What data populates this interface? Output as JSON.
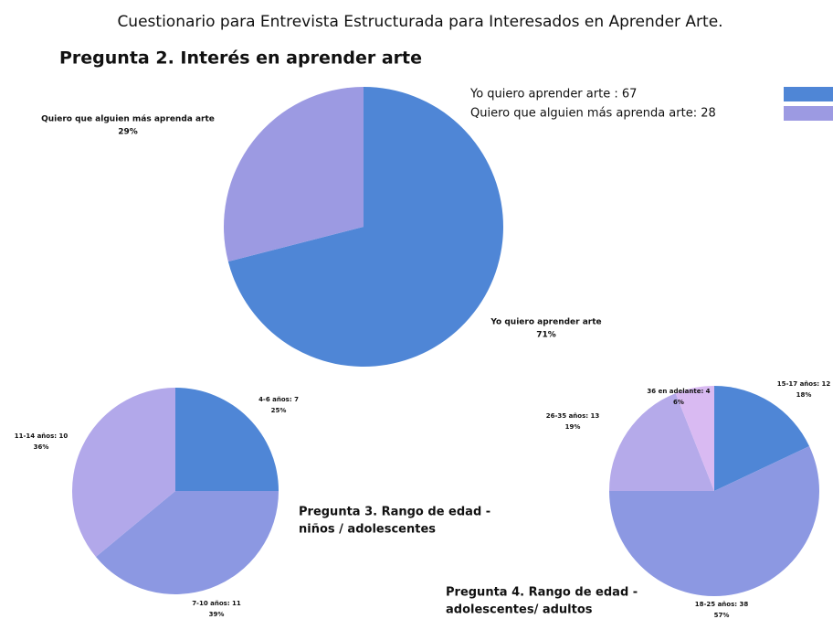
{
  "title": "Cuestionario para Entrevista Estructurada para Interesados en Aprender Arte.",
  "chart_data": [
    {
      "type": "pie",
      "title": [
        "Pregunta 2. Interés en aprender arte"
      ],
      "categories": [
        "Yo quiero aprender arte",
        "Quiero que alguien más aprenda arte"
      ],
      "values": [
        71,
        29
      ],
      "value_labels": [
        "71%",
        "29%"
      ],
      "colors": [
        "#4f86d6",
        "#9c9ae2"
      ],
      "legend": [
        "Yo quiero aprender arte : 67",
        "Quiero que alguien más aprenda arte: 28"
      ]
    },
    {
      "type": "pie",
      "title": [
        "Pregunta 3. Rango de edad -",
        "niños / adolescentes"
      ],
      "categories": [
        "4-6 años: 7",
        "7-10 años: 11",
        "11-14 años: 10"
      ],
      "values": [
        25,
        39,
        36
      ],
      "value_labels": [
        "25%",
        "39%",
        "36%"
      ],
      "colors": [
        "#4f86d6",
        "#8c98e2",
        "#b2a8ea"
      ]
    },
    {
      "type": "pie",
      "title": [
        "Pregunta 4. Rango de edad -",
        "adolescentes/ adultos"
      ],
      "categories": [
        "15-17 años: 12",
        "18-25 años: 38",
        "26-35 años: 13",
        "36 en adelante: 4"
      ],
      "values": [
        18,
        57,
        19,
        6
      ],
      "value_labels": [
        "18%",
        "57%",
        "19%",
        "6%"
      ],
      "colors": [
        "#4f86d6",
        "#8c98e2",
        "#b5aaea",
        "#d9baf2"
      ]
    }
  ]
}
